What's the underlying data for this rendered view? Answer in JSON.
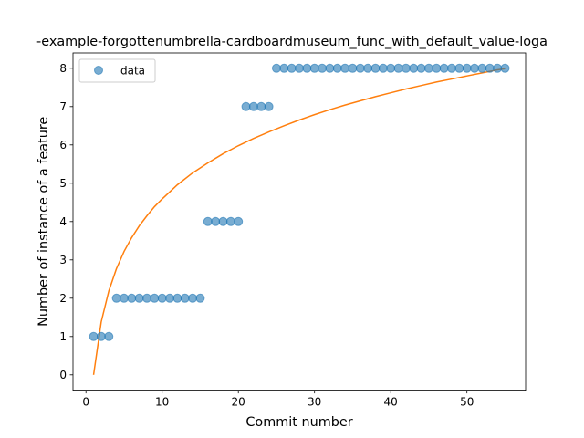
{
  "chart_data": {
    "type": "scatter",
    "title": "-example-forgottenumbrella-cardboardmuseum_func_with_default_value-loga",
    "xlabel": "Commit number",
    "ylabel": "Number of instance of a feature",
    "xlim": [
      -1.7,
      57.7
    ],
    "ylim": [
      -0.4,
      8.4
    ],
    "x_ticks": [
      0,
      10,
      20,
      30,
      40,
      50
    ],
    "y_ticks": [
      0,
      1,
      2,
      3,
      4,
      5,
      6,
      7,
      8
    ],
    "grid": false,
    "legend_position": "top-left",
    "series": [
      {
        "name": "data",
        "kind": "scatter",
        "color": "#1f77b4",
        "opacity": 0.6,
        "x": [
          1,
          2,
          3,
          4,
          5,
          6,
          7,
          8,
          9,
          10,
          11,
          12,
          13,
          14,
          15,
          16,
          17,
          18,
          19,
          20,
          21,
          22,
          23,
          24,
          25,
          26,
          27,
          28,
          29,
          30,
          31,
          32,
          33,
          34,
          35,
          36,
          37,
          38,
          39,
          40,
          41,
          42,
          43,
          44,
          45,
          46,
          47,
          48,
          49,
          50,
          51,
          52,
          53,
          54,
          55
        ],
        "y": [
          1,
          1,
          1,
          2,
          2,
          2,
          2,
          2,
          2,
          2,
          2,
          2,
          2,
          2,
          2,
          4,
          4,
          4,
          4,
          4,
          7,
          7,
          7,
          7,
          8,
          8,
          8,
          8,
          8,
          8,
          8,
          8,
          8,
          8,
          8,
          8,
          8,
          8,
          8,
          8,
          8,
          8,
          8,
          8,
          8,
          8,
          8,
          8,
          8,
          8,
          8,
          8,
          8,
          8,
          8
        ]
      },
      {
        "kind": "line",
        "color": "#ff7f0e",
        "x": [
          1,
          2,
          3,
          4,
          5,
          6,
          7,
          8,
          9,
          10,
          12,
          14,
          16,
          18,
          20,
          22,
          24,
          26,
          28,
          30,
          32,
          34,
          36,
          38,
          40,
          42,
          44,
          46,
          48,
          50,
          52,
          54,
          55
        ],
        "y": [
          0,
          1.38,
          2.19,
          2.77,
          3.22,
          3.58,
          3.89,
          4.15,
          4.39,
          4.59,
          4.96,
          5.27,
          5.53,
          5.77,
          5.98,
          6.17,
          6.34,
          6.5,
          6.65,
          6.79,
          6.92,
          7.04,
          7.15,
          7.26,
          7.36,
          7.46,
          7.55,
          7.64,
          7.72,
          7.8,
          7.88,
          7.96,
          7.99
        ]
      }
    ]
  }
}
